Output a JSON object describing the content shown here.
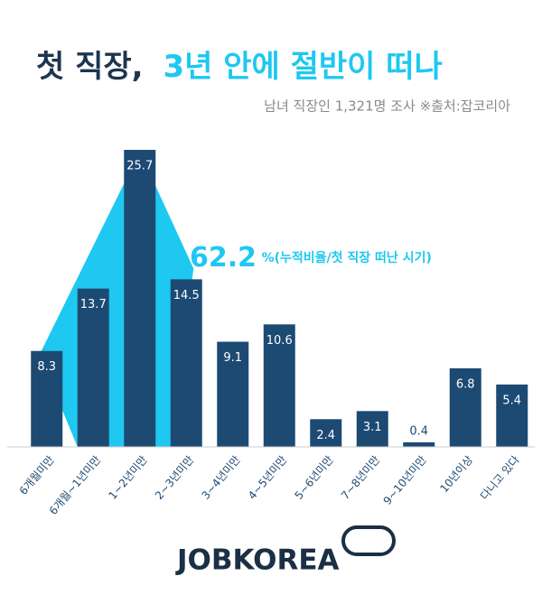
{
  "chart_data": {
    "type": "bar",
    "title_parts": [
      "첫 직장,",
      "3년 안에 절반이 떠나"
    ],
    "subtitle": "남녀 직장인 1,321명 조사 ※출처:잡코리아",
    "annotation": {
      "value": 62.2,
      "text": "%(누적비율/첫 직장 떠난 시기)"
    },
    "categories": [
      "6개월미만",
      "6개월~1년미만",
      "1~2년미만",
      "2~3년미만",
      "3~4년미만",
      "4~5년미만",
      "5~6년미만",
      "7~8년미만",
      "9~10년미만",
      "10년이상",
      "다니고 있다"
    ],
    "values": [
      8.3,
      13.7,
      25.7,
      14.5,
      9.1,
      10.6,
      2.4,
      3.1,
      0.4,
      6.8,
      5.4
    ],
    "color": "#1d4a73",
    "highlight_color": "#1ec8f0",
    "logo": "JOBKOREA"
  }
}
